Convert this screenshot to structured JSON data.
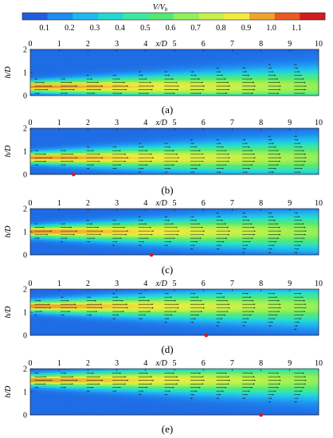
{
  "colorbar": {
    "title_main": "V/V",
    "title_sub": "b",
    "ticks": [
      "0.1",
      "0.2",
      "0.3",
      "0.4",
      "0.5",
      "0.6",
      "0.7",
      "0.8",
      "0.9",
      "1.0",
      "1.1"
    ],
    "colors": [
      "#1f5fe0",
      "#1e8cf0",
      "#20b8f0",
      "#23d8d2",
      "#3ee6a4",
      "#54e874",
      "#8ef05a",
      "#c8f048",
      "#f2ea3c",
      "#f0a42a",
      "#e85a22",
      "#d41c1c"
    ]
  },
  "chart_data": [
    {
      "type": "heatmap",
      "panel_label": "(a)",
      "xlabel": "x/D",
      "ylabel": "h/D",
      "xlim": [
        0,
        10
      ],
      "ylim": [
        0,
        2
      ],
      "xticks": [
        "0",
        "1",
        "2",
        "3",
        "4",
        "5",
        "6",
        "7",
        "8",
        "9",
        "10"
      ],
      "yticks": [
        "0",
        "1",
        "2"
      ],
      "jet_center_h": 0.38,
      "source_x": null
    },
    {
      "type": "heatmap",
      "panel_label": "(b)",
      "xlabel": "x/D",
      "ylabel": "h/D",
      "xlim": [
        0,
        10
      ],
      "ylim": [
        0,
        2
      ],
      "xticks": [
        "0",
        "1",
        "2",
        "3",
        "4",
        "5",
        "6",
        "7",
        "8",
        "9",
        "10"
      ],
      "yticks": [
        "0",
        "1",
        "2"
      ],
      "jet_center_h": 0.72,
      "source_x": 1.5
    },
    {
      "type": "heatmap",
      "panel_label": "(c)",
      "xlabel": "x/D",
      "ylabel": "h/D",
      "xlim": [
        0,
        10
      ],
      "ylim": [
        0,
        2
      ],
      "xticks": [
        "0",
        "1",
        "2",
        "3",
        "4",
        "5",
        "6",
        "7",
        "8",
        "9",
        "10"
      ],
      "yticks": [
        "0",
        "1",
        "2"
      ],
      "jet_center_h": 1.0,
      "source_x": 4.2
    },
    {
      "type": "heatmap",
      "panel_label": "(d)",
      "xlabel": "x/D",
      "ylabel": "h/D",
      "xlim": [
        0,
        10
      ],
      "ylim": [
        0,
        2
      ],
      "xticks": [
        "0",
        "1",
        "2",
        "3",
        "4",
        "5",
        "6",
        "7",
        "8",
        "9",
        "10"
      ],
      "yticks": [
        "0",
        "1",
        "2"
      ],
      "jet_center_h": 1.25,
      "source_x": 6.1
    },
    {
      "type": "heatmap",
      "panel_label": "(e)",
      "xlabel": "x/D",
      "ylabel": "h/D",
      "xlim": [
        0,
        10
      ],
      "ylim": [
        0,
        2
      ],
      "xticks": [
        "0",
        "1",
        "2",
        "3",
        "4",
        "5",
        "6",
        "7",
        "8",
        "9",
        "10"
      ],
      "yticks": [
        "0",
        "1",
        "2"
      ],
      "jet_center_h": 1.5,
      "source_x": 8.0
    }
  ]
}
